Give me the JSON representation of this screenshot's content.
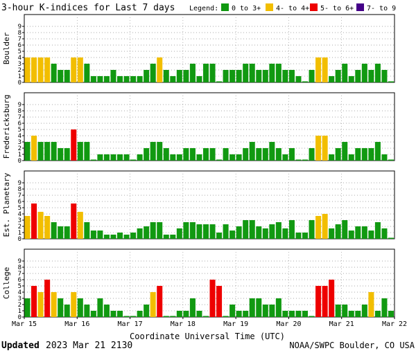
{
  "title": "3-hour K-indices for Last 7 days",
  "legend": {
    "label": "Legend:",
    "items": [
      {
        "text": "0 to 3+",
        "color": "#119911"
      },
      {
        "text": "4- to 4+",
        "color": "#f2be00"
      },
      {
        "text": "5- to 6+",
        "color": "#ee0000"
      },
      {
        "text": "7- to 9",
        "color": "#440088"
      }
    ]
  },
  "xlabel": "Coordinate Universal Time (UTC)",
  "footer": {
    "updated_label": "Updated",
    "updated_value": "2023 Mar 21 2130",
    "credit": "NOAA/SWPC Boulder, CO USA"
  },
  "chart_data": {
    "type": "bar",
    "ylim": [
      0,
      9
    ],
    "yticks": [
      "0",
      "1",
      "2",
      "3",
      "4",
      "5",
      "6",
      "7",
      "8",
      "9"
    ],
    "x_ticks": [
      "Mar 15",
      "Mar 16",
      "Mar 17",
      "Mar 18",
      "Mar 19",
      "Mar 20",
      "Mar 21",
      "Mar 22"
    ],
    "intervals_per_day": 8,
    "grid": "horizontal-dotted",
    "series": [
      {
        "name": "Boulder",
        "values": [
          4,
          4,
          4,
          4,
          3,
          2,
          2,
          4,
          4,
          3,
          1,
          1,
          1,
          2,
          1,
          1,
          1,
          1,
          2,
          3,
          4,
          2,
          1,
          2,
          2,
          3,
          1,
          3,
          3,
          0,
          2,
          2,
          2,
          3,
          3,
          2,
          2,
          3,
          3,
          2,
          2,
          1,
          0,
          2,
          4,
          4,
          1,
          2,
          3,
          1,
          2,
          3,
          2,
          3,
          2,
          0
        ]
      },
      {
        "name": "Fredericksburg",
        "values": [
          3,
          4,
          3,
          3,
          3,
          2,
          2,
          5,
          3,
          3,
          0,
          1,
          1,
          1,
          1,
          1,
          0,
          1,
          2,
          3,
          3,
          2,
          1,
          1,
          2,
          2,
          1,
          2,
          2,
          0,
          2,
          1,
          1,
          2,
          3,
          2,
          2,
          3,
          2,
          1,
          2,
          0,
          0,
          2,
          4,
          4,
          1,
          2,
          3,
          1,
          2,
          2,
          2,
          3,
          1,
          0
        ]
      },
      {
        "name": "Est. Planetary",
        "values": [
          3.67,
          5.67,
          4.33,
          3.67,
          2.67,
          2,
          2,
          5.67,
          4.33,
          2.67,
          1.33,
          1.33,
          0.67,
          0.67,
          1,
          0.67,
          1,
          1.67,
          2,
          2.67,
          2.67,
          0.67,
          0.67,
          1.67,
          2.67,
          2.67,
          2.33,
          2.33,
          2.33,
          1,
          2.33,
          1.33,
          2,
          3,
          3,
          2,
          1.67,
          2.33,
          2.67,
          1.67,
          3,
          1,
          1,
          3,
          3.67,
          4,
          1.67,
          2.33,
          3,
          1.33,
          2,
          2,
          1.33,
          2.67,
          1.67,
          0
        ]
      },
      {
        "name": "College",
        "values": [
          3,
          5,
          4,
          6,
          4,
          3,
          2,
          4,
          3,
          2,
          1,
          3,
          2,
          1,
          1,
          0,
          0,
          1,
          2,
          4,
          5,
          0,
          0,
          1,
          1,
          3,
          1,
          0,
          6,
          5,
          0,
          2,
          1,
          1,
          3,
          3,
          2,
          2,
          3,
          1,
          1,
          1,
          1,
          0,
          5,
          5,
          6,
          2,
          2,
          1,
          1,
          2,
          4,
          1,
          3,
          1
        ]
      }
    ]
  }
}
